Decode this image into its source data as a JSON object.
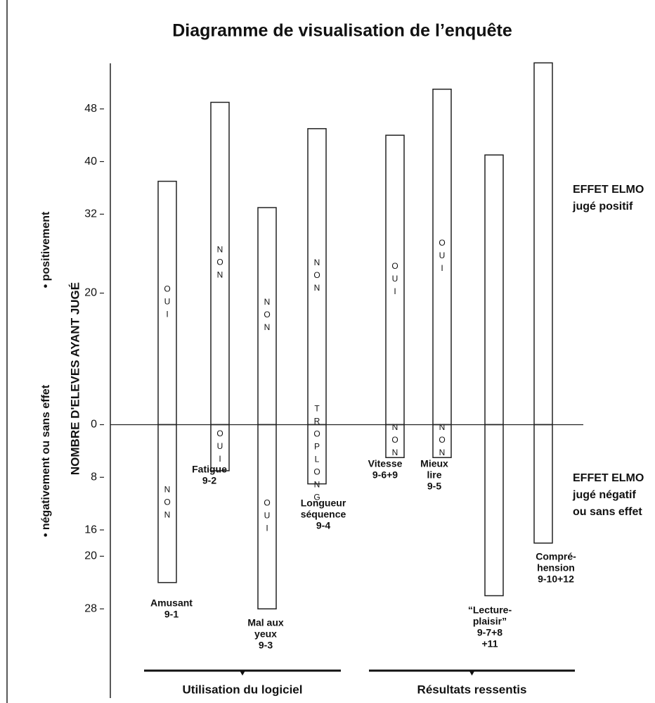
{
  "chart_data": {
    "type": "diverging-bar",
    "title": "Diagramme de visualisation de l’enquête",
    "y_label": "NOMBRE D'ELEVES AYANT JUGÉ",
    "y_label_positive": "• positivement",
    "y_label_negative": "• négativement ou sans effet",
    "annotation_positive": [
      "EFFET ELMO",
      "jugé positif"
    ],
    "annotation_negative": [
      "EFFET ELMO",
      "jugé négatif",
      "ou sans effet"
    ],
    "groups": [
      "Utilisation du logiciel",
      "Résultats ressentis"
    ],
    "categories": [
      [
        "Amusant",
        "9-1"
      ],
      [
        "Fatigue",
        "9-2"
      ],
      [
        "Mal aux",
        "yeux",
        "9-3"
      ],
      [
        "Longueur",
        "séquence",
        "9-4"
      ],
      [
        "Vitesse",
        "9-6+9"
      ],
      [
        "Mieux",
        "lire",
        "9-5"
      ],
      [
        "“Lecture-",
        "plaisir”",
        "9-7+8",
        "+11"
      ],
      [
        "Compré-",
        "hension",
        "9-10+12"
      ]
    ],
    "series": [
      {
        "values": [
          37,
          49,
          33,
          45,
          44,
          51,
          41,
          55
        ],
        "bar_labels": [
          "OUI",
          "NON",
          "NON",
          "NON",
          "OUI",
          "OUI",
          null,
          null
        ]
      },
      {
        "values": [
          -24,
          -7,
          -28,
          -9,
          -5,
          -5,
          -26,
          -18
        ],
        "bar_labels": [
          "NON",
          "OUI",
          "OUI",
          "TROPLONG",
          "NON",
          "NON",
          null,
          null
        ]
      }
    ],
    "color": "#ffffff",
    "ylim": [
      -36,
      56
    ],
    "yticks": [
      48,
      40,
      32,
      20,
      0,
      {
        "value": -8,
        "label": "8"
      },
      {
        "value": -16,
        "label": "16"
      },
      {
        "value": -20,
        "label": "20"
      },
      {
        "value": -28,
        "label": "28"
      }
    ]
  }
}
